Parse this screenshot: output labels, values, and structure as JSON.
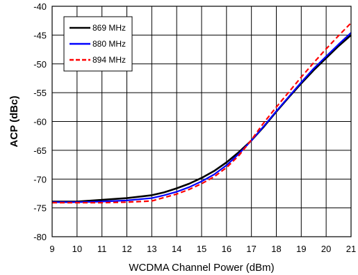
{
  "chart_data": {
    "type": "line",
    "title": "",
    "xlabel": "WCDMA Channel Power (dBm)",
    "ylabel": "ACP (dBc)",
    "xlim": [
      9,
      21
    ],
    "ylim": [
      -80,
      -40
    ],
    "xticks": [
      "9",
      "10",
      "11",
      "12",
      "13",
      "14",
      "15",
      "16",
      "17",
      "18",
      "19",
      "20",
      "21"
    ],
    "yticks": [
      "-40",
      "-45",
      "-50",
      "-55",
      "-60",
      "-65",
      "-70",
      "-75",
      "-80"
    ],
    "grid": true,
    "legend_position": "top-left",
    "series": [
      {
        "name": "869 MHz",
        "color": "#000000",
        "style": "solid",
        "x": [
          9,
          10,
          11,
          12,
          13,
          13.5,
          14,
          14.5,
          15,
          15.5,
          16,
          16.5,
          17,
          17.5,
          18,
          18.5,
          19,
          19.5,
          20,
          20.5,
          21
        ],
        "y": [
          -73.9,
          -73.9,
          -73.6,
          -73.3,
          -72.8,
          -72.3,
          -71.6,
          -70.8,
          -69.8,
          -68.6,
          -67.1,
          -65.3,
          -63.3,
          -60.9,
          -58.3,
          -55.8,
          -53.4,
          -51.1,
          -49.0,
          -46.9,
          -45.0
        ]
      },
      {
        "name": "880 MHz",
        "color": "#0000ff",
        "style": "solid",
        "x": [
          9,
          10,
          11,
          12,
          13,
          13.5,
          14,
          14.5,
          15,
          15.5,
          16,
          16.5,
          17,
          17.5,
          18,
          18.5,
          19,
          19.5,
          20,
          20.5,
          21
        ],
        "y": [
          -74.0,
          -74.0,
          -73.9,
          -73.7,
          -73.3,
          -72.8,
          -72.2,
          -71.4,
          -70.4,
          -69.2,
          -67.6,
          -65.6,
          -63.3,
          -60.8,
          -58.2,
          -55.7,
          -53.2,
          -50.8,
          -48.7,
          -46.6,
          -44.6
        ]
      },
      {
        "name": "894 MHz",
        "color": "#ff0000",
        "style": "dashed",
        "x": [
          9,
          10,
          11,
          12,
          13,
          13.5,
          14,
          14.5,
          15,
          15.5,
          16,
          16.5,
          17,
          17.5,
          18,
          18.5,
          19,
          19.5,
          20,
          20.5,
          21
        ],
        "y": [
          -74.1,
          -74.1,
          -74.1,
          -74.0,
          -73.8,
          -73.2,
          -72.6,
          -71.8,
          -70.8,
          -69.6,
          -68.0,
          -65.9,
          -63.2,
          -60.2,
          -57.5,
          -54.9,
          -52.3,
          -49.8,
          -47.4,
          -45.1,
          -42.9
        ]
      }
    ]
  }
}
